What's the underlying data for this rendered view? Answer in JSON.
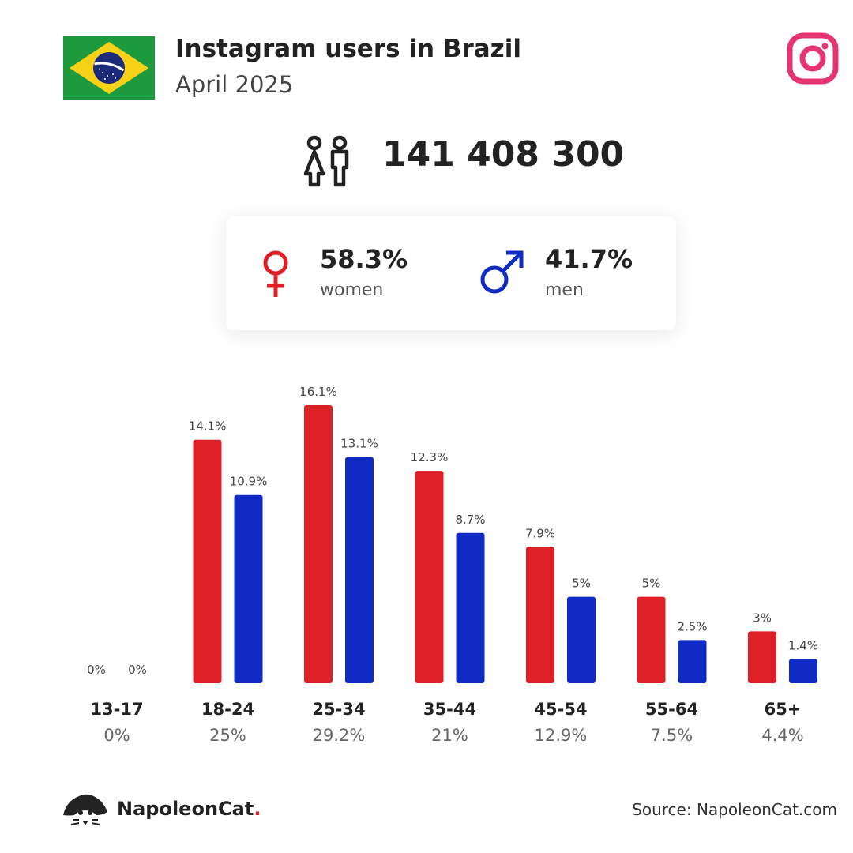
{
  "header": {
    "title": "Instagram users in Brazil",
    "subtitle": "April 2025"
  },
  "icons": {
    "flag": "brazil-flag-icon",
    "platform": "instagram-icon",
    "users": "users-icon",
    "female": "female-symbol-icon",
    "male": "male-symbol-icon",
    "logo": "napoleoncat-logo-icon"
  },
  "total_users": "141 408 300",
  "gender": {
    "women": {
      "value": "58.3%",
      "label": "women"
    },
    "men": {
      "value": "41.7%",
      "label": "men"
    }
  },
  "chart_data": {
    "type": "bar",
    "categories": [
      "13-17",
      "18-24",
      "25-34",
      "35-44",
      "45-54",
      "55-64",
      "65+"
    ],
    "category_totals": [
      "0%",
      "25%",
      "29.2%",
      "21%",
      "12.9%",
      "7.5%",
      "4.4%"
    ],
    "series": [
      {
        "values": [
          0,
          14.1,
          16.1,
          12.3,
          7.9,
          5,
          3
        ],
        "labels": [
          "0%",
          "14.1%",
          "16.1%",
          "12.3%",
          "7.9%",
          "5%",
          "3%"
        ],
        "color": "#dd1f26"
      },
      {
        "values": [
          0,
          10.9,
          13.1,
          8.7,
          5,
          2.5,
          1.4
        ],
        "labels": [
          "0%",
          "10.9%",
          "13.1%",
          "8.7%",
          "5%",
          "2.5%",
          "1.4%"
        ],
        "color": "#0f2bc3"
      }
    ],
    "ylim": [
      0,
      16.1
    ],
    "grid": false,
    "legend": "none"
  },
  "footer": {
    "brand": "NapoleonCat",
    "brand_dot": ".",
    "source": "Source: NapoleonCat.com"
  },
  "colors": {
    "women": "#dd1f26",
    "men": "#0f2bc3",
    "instagram": "#e4356f"
  }
}
